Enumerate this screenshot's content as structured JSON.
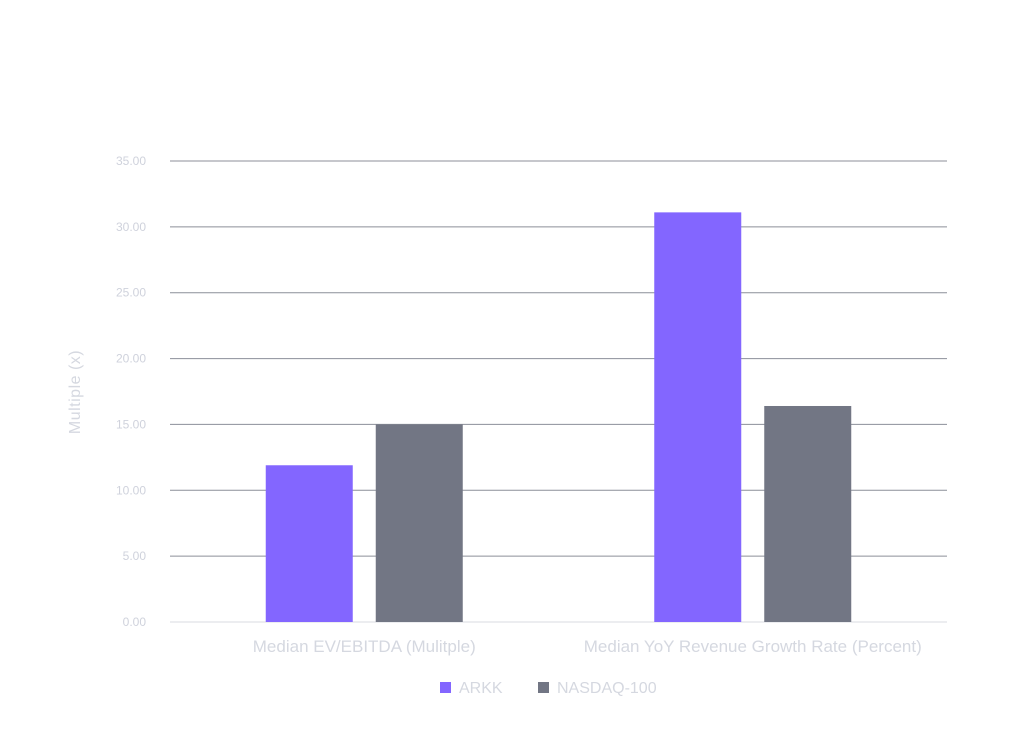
{
  "chart_data": {
    "type": "bar",
    "ylabel": "Multiple (x)",
    "ylim": [
      0,
      35
    ],
    "yticks": [
      0,
      5,
      10,
      15,
      20,
      25,
      30,
      35
    ],
    "ytick_labels": [
      "0.00",
      "5.00",
      "10.00",
      "15.00",
      "20.00",
      "25.00",
      "30.00",
      "35.00"
    ],
    "categories": [
      "Median EV/EBITDA (Mulitple)",
      "Median YoY Revenue Growth Rate (Percent)"
    ],
    "series": [
      {
        "name": "ARKK",
        "color": "#8366ff",
        "values": [
          11.9,
          31.1
        ]
      },
      {
        "name": "NASDAQ-100",
        "color": "#727684",
        "values": [
          15.0,
          16.4
        ]
      }
    ],
    "grid": true,
    "legend_position": "bottom-center"
  }
}
